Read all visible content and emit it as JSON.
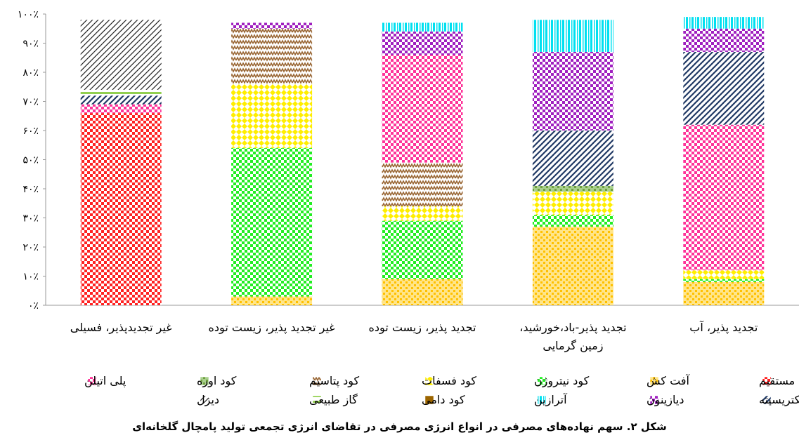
{
  "chart_data": {
    "type": "bar",
    "stacked": true,
    "percent": true,
    "ylim": [
      0,
      100
    ],
    "yticks": [
      "۰٪",
      "۱۰٪",
      "۲۰٪",
      "۳۰٪",
      "۴۰٪",
      "۵۰٪",
      "۶۰٪",
      "۷۰٪",
      "۸۰٪",
      "۹۰٪",
      "۱۰۰٪"
    ],
    "categories": [
      "غیر تجدیدپذیر، فسیلی",
      "غیر تجدید پذیر، زیست توده",
      "تجدید پذیر، زیست توده",
      "تجدید پذیر-باد،خورشید، زمین گرمایی",
      "تجدید پذیر، آب"
    ],
    "categories_lines": [
      [
        "غیر تجدیدپذیر، فسیلی"
      ],
      [
        "غیر تجدید پذیر، زیست توده"
      ],
      [
        "تجدید پذیر، زیست توده"
      ],
      [
        "تجدید پذیر-باد،خورشید،",
        "زمین گرمایی"
      ],
      [
        "تجدید پذیر، آب"
      ]
    ],
    "series": [
      {
        "name": "مستقیم",
        "color": "#ff2222",
        "bg": "#ffffff",
        "pattern": "checker",
        "values": [
          66,
          0,
          0,
          0,
          0
        ]
      },
      {
        "name": "آفت کش",
        "color": "#ffc000",
        "bg": "#ffe58a",
        "pattern": "dots",
        "values": [
          0,
          3,
          9,
          27,
          8
        ]
      },
      {
        "name": "کود نیتروژن",
        "color": "#22ee22",
        "bg": "#ffffff",
        "pattern": "checker",
        "values": [
          0,
          51,
          20,
          4,
          1
        ]
      },
      {
        "name": "کود فسفات",
        "color": "#ffee00",
        "bg": "#ffffff",
        "pattern": "diamond",
        "values": [
          0,
          22,
          5,
          8,
          3
        ]
      },
      {
        "name": "کود پتاسیم",
        "color": "#996633",
        "bg": "#ffffff",
        "pattern": "zigzag",
        "values": [
          0,
          19,
          15,
          0,
          0
        ]
      },
      {
        "name": "کود اوره",
        "color": "#70a040",
        "bg": "#a9d08e",
        "pattern": "dots",
        "values": [
          0,
          0,
          0,
          2,
          0
        ]
      },
      {
        "name": "پلی اتیلن",
        "color": "#ff3399",
        "bg": "#ffffff",
        "pattern": "checker",
        "values": [
          3,
          0,
          37,
          0,
          50
        ]
      },
      {
        "name": "الکتریسیته",
        "color": "#1f3864",
        "bg": "#ffffff",
        "pattern": "diag",
        "values": [
          3,
          0,
          0,
          19,
          25
        ]
      },
      {
        "name": "دیازینون",
        "color": "#a020c0",
        "bg": "#ffffff",
        "pattern": "checker",
        "values": [
          0,
          2,
          8,
          27,
          8
        ]
      },
      {
        "name": "آترازین",
        "color": "#00e0f0",
        "bg": "#ffffff",
        "pattern": "vlines",
        "values": [
          0,
          0,
          3,
          11,
          4
        ]
      },
      {
        "name": "کود دامی",
        "color": "#9c6500",
        "bg": "#9c6500",
        "pattern": "solid",
        "values": [
          0,
          0,
          0,
          0,
          0
        ]
      },
      {
        "name": "گاز طبیعی",
        "color": "#92d050",
        "bg": "#ffffff",
        "pattern": "hstripe",
        "values": [
          2,
          0,
          0,
          0,
          0
        ]
      },
      {
        "name": "دیزل",
        "color": "#222222",
        "bg": "#ffffff",
        "pattern": "diagthin",
        "values": [
          24,
          0,
          0,
          0,
          0
        ]
      }
    ],
    "legend_position": "bottom",
    "caption": "شکل ۲. سهم نهاده‌های مصرفی در انواع انرژی مصرفی در تقاضای انرژی تجمعی تولید پامچال گلخانه‌ای"
  }
}
